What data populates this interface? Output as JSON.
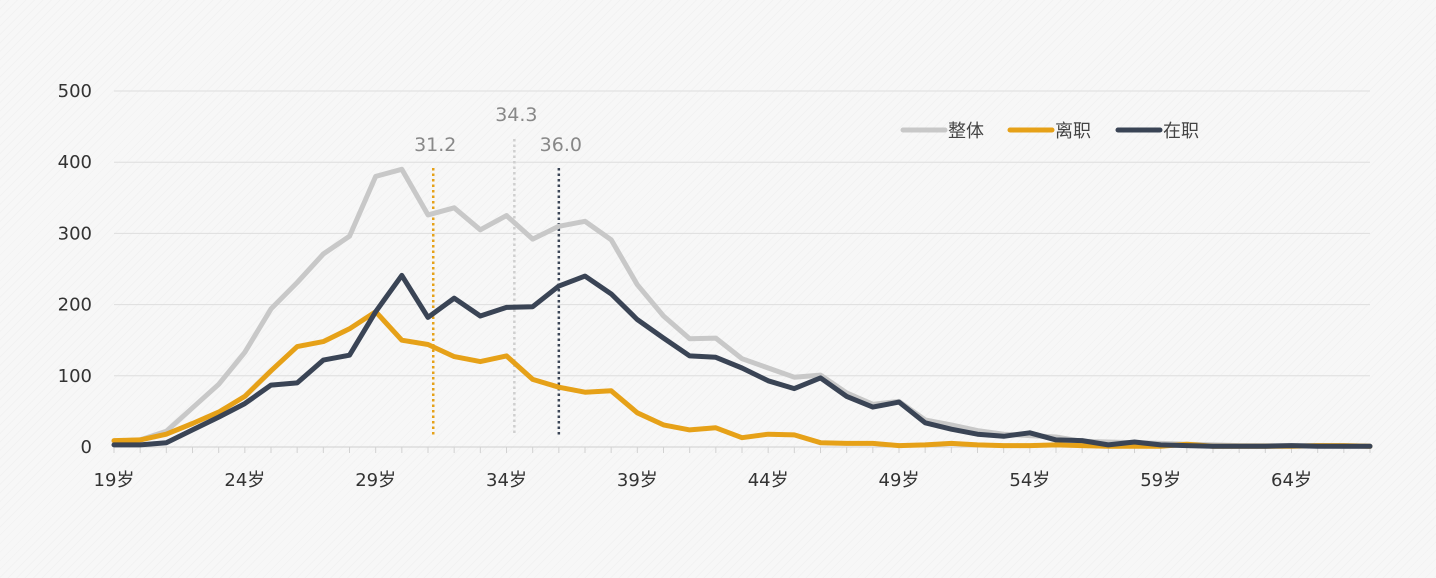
{
  "chart_data": {
    "type": "line",
    "ylim": [
      0,
      500
    ],
    "yticks": [
      0,
      100,
      200,
      300,
      400,
      500
    ],
    "xlim": [
      19,
      67
    ],
    "xticks": [
      19,
      24,
      29,
      34,
      39,
      44,
      49,
      54,
      59,
      64
    ],
    "xtick_suffix": "岁",
    "grid": true,
    "legend_position": "top-right",
    "x": [
      19,
      20,
      21,
      22,
      23,
      24,
      25,
      26,
      27,
      28,
      29,
      30,
      31,
      32,
      33,
      34,
      35,
      36,
      37,
      38,
      39,
      40,
      41,
      42,
      43,
      44,
      45,
      46,
      47,
      48,
      49,
      50,
      51,
      52,
      53,
      54,
      55,
      56,
      57,
      58,
      59,
      60,
      61,
      62,
      63,
      64,
      65,
      66,
      67
    ],
    "series": [
      {
        "name": "整体",
        "color": "#c8c8c8",
        "values": [
          8,
          10,
          22,
          55,
          88,
          133,
          194,
          231,
          271,
          296,
          380,
          390,
          326,
          336,
          305,
          325,
          292,
          310,
          317,
          291,
          228,
          184,
          152,
          153,
          124,
          111,
          98,
          101,
          76,
          60,
          64,
          38,
          31,
          23,
          18,
          16,
          14,
          8,
          7,
          6,
          5,
          4,
          3,
          2,
          2,
          2,
          2,
          1,
          1
        ]
      },
      {
        "name": "离职",
        "color": "#e6a118",
        "values": [
          9,
          10,
          18,
          33,
          49,
          71,
          107,
          141,
          148,
          166,
          190,
          150,
          144,
          127,
          120,
          128,
          95,
          84,
          77,
          79,
          48,
          31,
          24,
          27,
          13,
          18,
          17,
          6,
          5,
          5,
          2,
          3,
          5,
          3,
          2,
          2,
          3,
          2,
          1,
          1,
          1,
          4,
          1,
          1,
          1,
          1,
          2,
          2,
          1
        ]
      },
      {
        "name": "在职",
        "color": "#3a4455",
        "values": [
          3,
          3,
          6,
          24,
          42,
          61,
          87,
          90,
          122,
          129,
          190,
          241,
          182,
          209,
          184,
          196,
          197,
          226,
          240,
          215,
          179,
          153,
          128,
          126,
          111,
          93,
          82,
          97,
          71,
          56,
          63,
          34,
          25,
          18,
          15,
          20,
          10,
          9,
          3,
          7,
          3,
          2,
          1,
          1,
          1,
          2,
          1,
          1,
          1
        ]
      }
    ],
    "markers": [
      {
        "value": 31.2,
        "label": "31.2",
        "color": "#e6a118"
      },
      {
        "value": 34.3,
        "label": "34.3",
        "color": "#cfcfcf"
      },
      {
        "value": 36.0,
        "label": "36.0",
        "color": "#3a4455"
      }
    ]
  }
}
